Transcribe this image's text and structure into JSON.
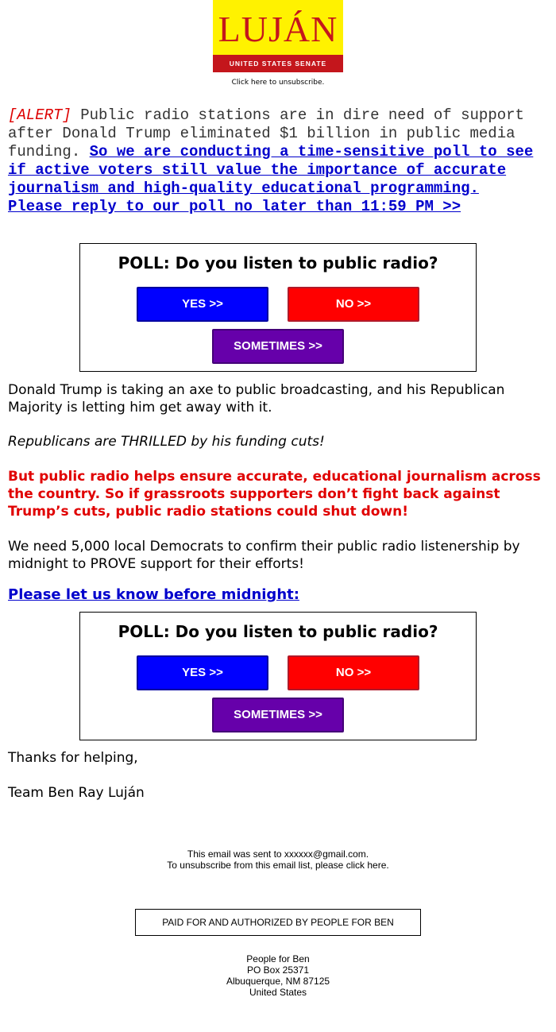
{
  "logo": {
    "name": "LUJÁN",
    "subtitle": "UNITED STATES SENATE",
    "colors": {
      "background": "#fff200",
      "accent": "#c4161c"
    }
  },
  "header": {
    "unsubscribe": "Click here to unsubscribe."
  },
  "alert": {
    "tag": "[ALERT]",
    "text": " Public radio stations are in dire need of support after Donald Trump eliminated $1 billion in public media funding. ",
    "link": "So we are conducting a time-sensitive poll to see if active voters still value the importance of accurate journalism and high-quality educational programming. Please reply to our poll no later than 11:59 PM >>"
  },
  "poll": {
    "question": "POLL: Do you listen to public radio?",
    "yes": "YES >>",
    "no": "NO >>",
    "sometimes": "SOMETIMES >>",
    "colors": {
      "yes": "#0000ff",
      "no": "#ff0000",
      "sometimes": "#6600aa"
    }
  },
  "body": {
    "p1": "Donald Trump is taking an axe to public broadcasting, and his Republican Majority is letting him get away with it.",
    "p2": "Republicans are THRILLED by his funding cuts!",
    "p3": "But public radio helps ensure accurate, educational journalism across the country. So if grassroots supporters don’t fight back against Trump’s cuts, public radio stations could shut down!",
    "p4": "We need 5,000 local Democrats to confirm their public radio listenership by midnight to PROVE support for their efforts!",
    "link": "Please let us know before midnight:",
    "thanks": "Thanks for helping,",
    "signature": "Team Ben Ray Luján"
  },
  "footer": {
    "sent_to": "This email was sent to xxxxxx@gmail.com.",
    "unsubscribe": "To unsubscribe from this email list, please click here.",
    "paid_for": "PAID FOR AND AUTHORIZED BY PEOPLE FOR BEN",
    "address": [
      "People for Ben",
      "PO Box 25371",
      "Albuquerque, NM 87125",
      "United States"
    ]
  }
}
